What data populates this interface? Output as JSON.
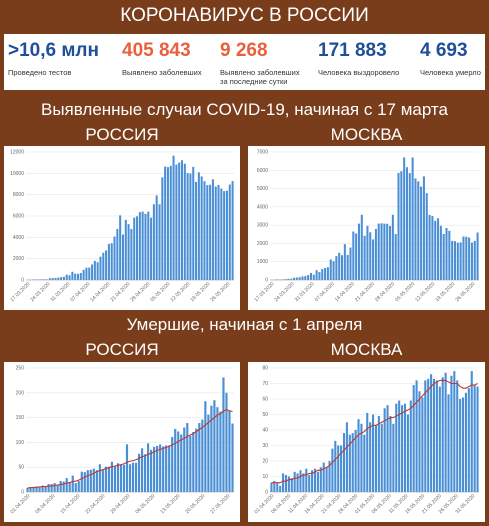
{
  "header": {
    "title": "КОРОНАВИРУС В РОССИИ"
  },
  "stats": [
    {
      "value": ">10,6 млн",
      "label": "Проведено тестов",
      "color": "#1f4e9a"
    },
    {
      "value": "405 843",
      "label": "Выявлено заболевших",
      "color": "#e8603c"
    },
    {
      "value": "9 268",
      "label": "Выявлено заболевших\nза последние сутки",
      "color": "#e8603c"
    },
    {
      "value": "171 883",
      "label": "Человека выздоровело",
      "color": "#1f4e9a"
    },
    {
      "value": "4 693",
      "label": "Человека умерло",
      "color": "#1f4e9a"
    }
  ],
  "section1": {
    "title": "Выявленные случаи COVID-19, начиная с 17 марта",
    "left": "РОССИЯ",
    "right": "МОСКВА"
  },
  "section2": {
    "title": "Умершие, начиная с 1 апреля",
    "left": "РОССИЯ",
    "right": "МОСКВА"
  },
  "colors": {
    "bar": "#4a8fd6",
    "trend": "#c0392b",
    "brand": "#7a3d1c"
  },
  "chart_data": [
    {
      "type": "bar",
      "title": "",
      "ylim": [
        0,
        12000
      ],
      "yticks": [
        0,
        2000,
        4000,
        6000,
        8000,
        10000,
        12000
      ],
      "xticks": [
        "17.03.2020",
        "24.03.2020",
        "31.03.2020",
        "07.04.2020",
        "14.04.2020",
        "21.04.2020",
        "28.04.2020",
        "05.05.2020",
        "12.05.2020",
        "19.05.2020",
        "26.05.2020"
      ],
      "values": [
        21,
        33,
        52,
        54,
        53,
        61,
        71,
        57,
        163,
        182,
        196,
        228,
        270,
        302,
        501,
        440,
        771,
        601,
        582,
        658,
        954,
        1154,
        1175,
        1459,
        1786,
        1667,
        2186,
        2558,
        2774,
        3388,
        3448,
        4070,
        4785,
        6060,
        4268,
        5642,
        5236,
        4774,
        5849,
        5966,
        6361,
        6411,
        6198,
        6411,
        5841,
        7099,
        7933,
        7099,
        9623,
        10633,
        10581,
        10699,
        11656,
        10817,
        11012,
        11231,
        10899,
        10028,
        9974,
        10598,
        9200,
        10100,
        9709,
        9263,
        8894,
        8926,
        9434,
        8764,
        8915,
        8572,
        8338,
        8371,
        8952,
        9268
      ]
    },
    {
      "type": "bar",
      "title": "",
      "ylim": [
        0,
        7000
      ],
      "yticks": [
        0,
        1000,
        2000,
        3000,
        4000,
        5000,
        6000,
        7000
      ],
      "xticks": [
        "17.03.2020",
        "24.03.2020",
        "31.03.2020",
        "07.04.2020",
        "14.04.2020",
        "21.04.2020",
        "28.04.2020",
        "05.05.2020",
        "12.05.2020",
        "19.05.2020",
        "26.05.2020"
      ],
      "values": [
        10,
        14,
        33,
        24,
        33,
        48,
        65,
        71,
        120,
        136,
        157,
        197,
        212,
        267,
        387,
        290,
        536,
        434,
        595,
        660,
        697,
        1124,
        1030,
        1306,
        1489,
        1355,
        1959,
        1370,
        1774,
        2649,
        2548,
        3083,
        3570,
        2418,
        2957,
        2612,
        2220,
        2789,
        3083,
        3100,
        3083,
        3075,
        2954,
        3570,
        2512,
        5858,
        5948,
        6703,
        6169,
        5846,
        6703,
        5551,
        5392,
        5112,
        5667,
        4748,
        3561,
        3505,
        3238,
        3376,
        2963,
        2516,
        2845,
        2688,
        2140,
        2124,
        2043,
        2054,
        2379,
        2367,
        2325,
        2044,
        2140,
        2595
      ]
    },
    {
      "type": "bar",
      "title": "",
      "ylim": [
        0,
        250
      ],
      "yticks": [
        0,
        50,
        100,
        150,
        200,
        250
      ],
      "xticks": [
        "01.04.2020",
        "08.04.2020",
        "15.04.2020",
        "22.04.2020",
        "29.04.2020",
        "06.05.2020",
        "13.05.2020",
        "20.05.2020",
        "27.05.2020"
      ],
      "values": [
        8,
        9,
        9,
        11,
        9,
        13,
        11,
        16,
        16,
        18,
        13,
        22,
        21,
        28,
        20,
        33,
        18,
        22,
        41,
        40,
        44,
        45,
        47,
        44,
        56,
        44,
        51,
        51,
        61,
        51,
        58,
        55,
        55,
        96,
        56,
        59,
        59,
        77,
        88,
        76,
        98,
        85,
        91,
        93,
        96,
        92,
        94,
        94,
        111,
        127,
        122,
        116,
        130,
        139,
        113,
        121,
        128,
        139,
        146,
        183,
        156,
        174,
        185,
        171,
        162,
        231,
        200,
        164,
        138
      ],
      "trend": [
        8,
        9,
        9,
        10,
        10,
        11,
        11,
        12,
        12,
        13,
        14,
        15,
        16,
        18,
        19,
        21,
        22,
        24,
        27,
        30,
        33,
        35,
        38,
        41,
        43,
        45,
        47,
        49,
        51,
        52,
        54,
        55,
        57,
        60,
        62,
        63,
        65,
        68,
        71,
        73,
        76,
        78,
        81,
        84,
        86,
        88,
        90,
        92,
        95,
        98,
        102,
        105,
        108,
        112,
        115,
        118,
        122,
        126,
        130,
        135,
        140,
        145,
        150,
        155,
        158,
        163,
        166,
        164,
        162
      ]
    },
    {
      "type": "bar",
      "title": "",
      "ylim": [
        0,
        80
      ],
      "yticks": [
        0,
        10,
        20,
        30,
        40,
        50,
        60,
        70,
        80
      ],
      "xticks": [
        "01.04.2020",
        "06.04.2020",
        "11.04.2020",
        "16.04.2020",
        "21.04.2020",
        "26.04.2020",
        "01.05.2020",
        "06.05.2020",
        "11.05.2020",
        "16.05.2020",
        "21.05.2020",
        "26.05.2020",
        "31.05.2020"
      ],
      "values": [
        6,
        7,
        6,
        4,
        12,
        11,
        10,
        9,
        13,
        12,
        14,
        12,
        15,
        11,
        14,
        15,
        13,
        16,
        19,
        16,
        20,
        28,
        33,
        30,
        30,
        38,
        45,
        37,
        38,
        40,
        47,
        44,
        37,
        51,
        45,
        50,
        43,
        49,
        44,
        54,
        56,
        49,
        44,
        57,
        59,
        56,
        57,
        50,
        59,
        69,
        72,
        65,
        61,
        72,
        73,
        76,
        73,
        72,
        68,
        74,
        77,
        63,
        75,
        78,
        72,
        60,
        61,
        64,
        67,
        78,
        69,
        68
      ],
      "trend": [
        6,
        6,
        6,
        6,
        7,
        7,
        8,
        8,
        9,
        9,
        10,
        11,
        11,
        12,
        12,
        13,
        14,
        14,
        15,
        16,
        17,
        19,
        21,
        23,
        25,
        27,
        29,
        31,
        33,
        35,
        37,
        38,
        39,
        41,
        42,
        43,
        43,
        44,
        45,
        46,
        47,
        48,
        48,
        49,
        50,
        51,
        52,
        53,
        54,
        56,
        58,
        60,
        62,
        64,
        66,
        68,
        70,
        71,
        72,
        72,
        72,
        71,
        70,
        70,
        70,
        68,
        67,
        67,
        68,
        69,
        69,
        70
      ]
    }
  ]
}
